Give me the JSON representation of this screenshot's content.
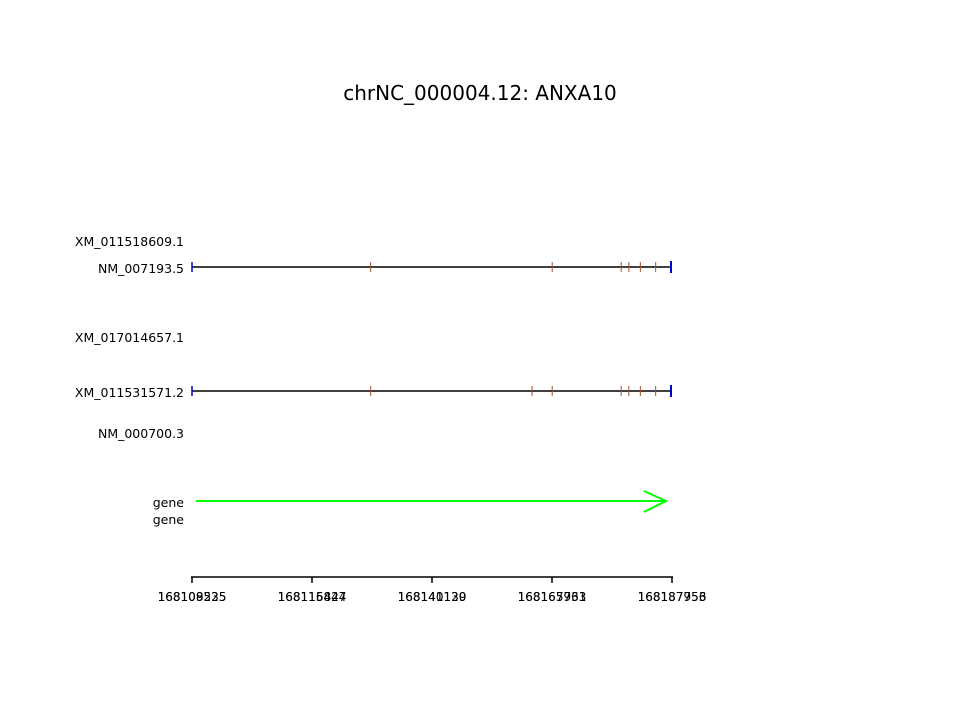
{
  "title": "chrNC_000004.12: ANXA10",
  "axis": {
    "ticks": [
      {
        "labels": [
          "168108525",
          "168109235"
        ]
      },
      {
        "labels": [
          "168116427",
          "168115844"
        ]
      },
      {
        "labels": [
          "168140130",
          "168141129"
        ]
      },
      {
        "labels": [
          "168165761",
          "168167933"
        ]
      },
      {
        "labels": [
          "168187956",
          "168187753"
        ]
      }
    ]
  },
  "tracks": [
    {
      "label": "XM_011518609.1",
      "drawn": false
    },
    {
      "label": "NM_007193.5",
      "drawn": true,
      "markers": [
        0.373,
        0.752,
        0.896,
        0.912,
        0.936,
        0.968
      ]
    },
    {
      "label": "XM_017014657.1",
      "drawn": false
    },
    {
      "label": "XM_011531571.2",
      "drawn": true,
      "markers": [
        0.373,
        0.71,
        0.752,
        0.896,
        0.912,
        0.936,
        0.968
      ]
    },
    {
      "label": "NM_000700.3",
      "drawn": false
    },
    {
      "label": "gene",
      "drawn": false,
      "arrow": true
    },
    {
      "label": "gene",
      "drawn": false
    }
  ],
  "colors": {
    "transcript_line": "#000000",
    "end_cap": "#0000cc",
    "exon_marker": "#a0522d",
    "gene_arrow": "#00ff00",
    "axis": "#000000"
  }
}
